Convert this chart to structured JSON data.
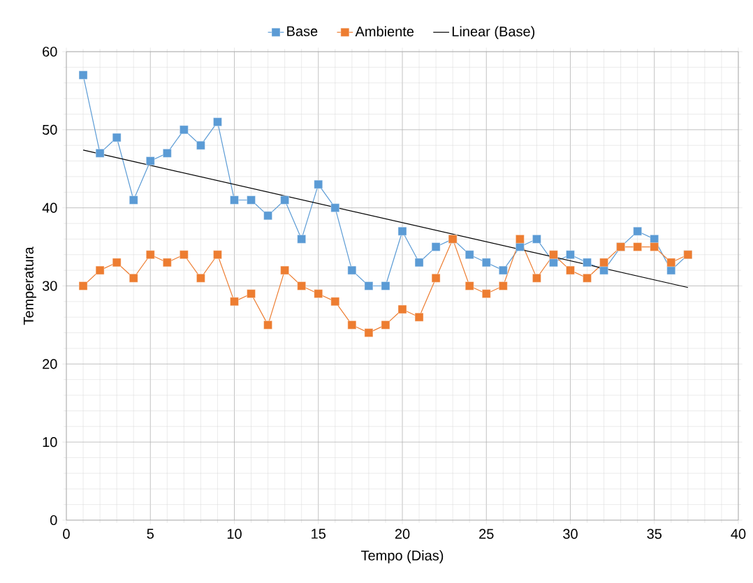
{
  "chart_data": {
    "type": "line",
    "xlabel": "Tempo (Dias)",
    "ylabel": "Temperatura",
    "x": [
      1,
      2,
      3,
      4,
      5,
      6,
      7,
      8,
      9,
      10,
      11,
      12,
      13,
      14,
      15,
      16,
      17,
      18,
      19,
      20,
      21,
      22,
      23,
      24,
      25,
      26,
      27,
      28,
      29,
      30,
      31,
      32,
      33,
      34,
      35,
      36,
      37
    ],
    "series": [
      {
        "name": "Base",
        "color": "#5b9bd5",
        "values": [
          57,
          47,
          49,
          41,
          46,
          47,
          50,
          48,
          51,
          41,
          41,
          39,
          41,
          36,
          43,
          40,
          32,
          30,
          30,
          37,
          33,
          35,
          36,
          34,
          33,
          32,
          35,
          36,
          33,
          34,
          33,
          32,
          35,
          37,
          36,
          32,
          34
        ]
      },
      {
        "name": "Ambiente",
        "color": "#ed7d31",
        "values": [
          30,
          32,
          33,
          31,
          34,
          33,
          34,
          31,
          34,
          28,
          29,
          25,
          32,
          30,
          29,
          28,
          25,
          24,
          25,
          27,
          26,
          31,
          36,
          30,
          29,
          30,
          36,
          31,
          34,
          32,
          31,
          33,
          35,
          35,
          35,
          33,
          34
        ]
      },
      {
        "name": "Linear (Base)",
        "color": "#000000",
        "marker": "none",
        "x": [
          1,
          37
        ],
        "values": [
          47.4,
          29.8
        ]
      }
    ],
    "xlim": [
      0,
      40
    ],
    "ylim": [
      0,
      60
    ],
    "xticks": [
      0,
      5,
      10,
      15,
      20,
      25,
      30,
      35,
      40
    ],
    "yticks": [
      0,
      10,
      20,
      30,
      40,
      50,
      60
    ],
    "grid": true,
    "legend": "top",
    "marker": "square"
  }
}
